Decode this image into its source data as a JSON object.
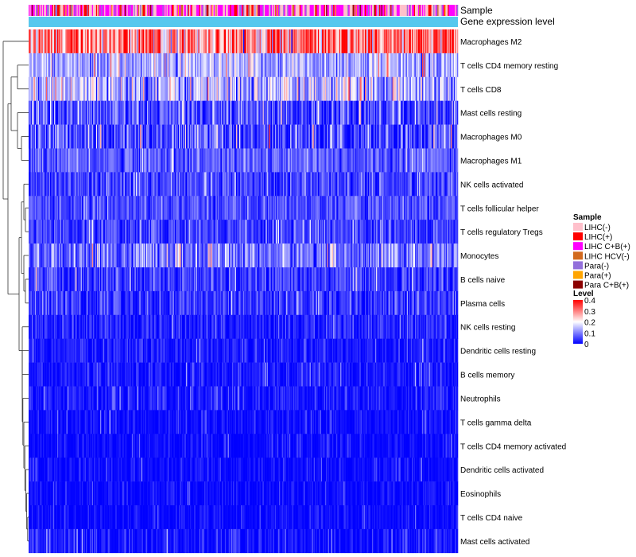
{
  "chart_data": {
    "type": "heatmap",
    "annotation_tracks": [
      "Sample",
      "Gene expression level"
    ],
    "rows": [
      {
        "label": "Macrophages M2",
        "mean": 0.3,
        "spread": 0.09
      },
      {
        "label": "T cells CD4 memory resting",
        "mean": 0.13,
        "spread": 0.05
      },
      {
        "label": "T cells CD8",
        "mean": 0.14,
        "spread": 0.07
      },
      {
        "label": "Mast cells resting",
        "mean": 0.06,
        "spread": 0.05
      },
      {
        "label": "Macrophages M0",
        "mean": 0.05,
        "spread": 0.06
      },
      {
        "label": "Macrophages M1",
        "mean": 0.07,
        "spread": 0.035
      },
      {
        "label": "NK cells activated",
        "mean": 0.05,
        "spread": 0.035
      },
      {
        "label": "T cells follicular helper",
        "mean": 0.06,
        "spread": 0.03
      },
      {
        "label": "T cells regulatory  Tregs",
        "mean": 0.05,
        "spread": 0.035
      },
      {
        "label": "Monocytes",
        "mean": 0.09,
        "spread": 0.05
      },
      {
        "label": "B cells naive",
        "mean": 0.04,
        "spread": 0.04
      },
      {
        "label": "Plasma cells",
        "mean": 0.04,
        "spread": 0.04
      },
      {
        "label": "NK cells resting",
        "mean": 0.02,
        "spread": 0.03
      },
      {
        "label": "Dendritic cells resting",
        "mean": 0.02,
        "spread": 0.025
      },
      {
        "label": "B cells memory",
        "mean": 0.015,
        "spread": 0.025
      },
      {
        "label": "Neutrophils",
        "mean": 0.015,
        "spread": 0.025
      },
      {
        "label": "T cells gamma delta",
        "mean": 0.008,
        "spread": 0.02
      },
      {
        "label": "T cells CD4 memory activated",
        "mean": 0.005,
        "spread": 0.02
      },
      {
        "label": "Dendritic cells activated",
        "mean": 0.005,
        "spread": 0.02
      },
      {
        "label": "Eosinophils",
        "mean": 0.003,
        "spread": 0.02
      },
      {
        "label": "T cells CD4 naive",
        "mean": 0.003,
        "spread": 0.02
      },
      {
        "label": "Mast cells activated",
        "mean": 0.01,
        "spread": 0.03
      }
    ],
    "legend": {
      "sample_title": "Sample",
      "sample_entries": [
        {
          "label": "LIHC(-)",
          "color": "#FFC0CB"
        },
        {
          "label": "LIHC(+)",
          "color": "#FF0000"
        },
        {
          "label": "LIHC C+B(+)",
          "color": "#FF00FF"
        },
        {
          "label": "LIHC HCV(-)",
          "color": "#D2691E"
        },
        {
          "label": "Para(-)",
          "color": "#9370DB"
        },
        {
          "label": "Para(+)",
          "color": "#FFA500"
        },
        {
          "label": "Para C+B(+)",
          "color": "#8B0000"
        }
      ],
      "level_title": "Level",
      "level_ticks": [
        "0.4",
        "0.3",
        "0.2",
        "0.1",
        "0"
      ],
      "level_tick_values": [
        0.4,
        0.3,
        0.2,
        0.1,
        0
      ],
      "level_range": [
        0,
        0.4
      ]
    },
    "colorscale": {
      "low": "#0000FF",
      "mid": "#FFFFFF",
      "high": "#FF0000",
      "mid_value": 0.2
    },
    "gene_expression_color": "#56C8EE",
    "n_columns": 420
  }
}
